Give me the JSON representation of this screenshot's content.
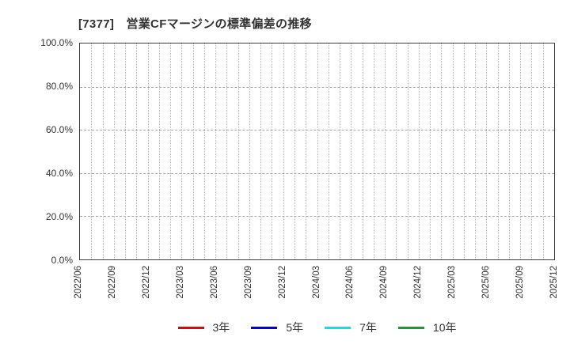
{
  "chart_data": {
    "type": "line",
    "title": "[7377]　営業CFマージンの標準偏差の推移",
    "x_labels": [
      "2022/06",
      "2022/09",
      "2022/12",
      "2023/03",
      "2023/06",
      "2023/09",
      "2023/12",
      "2024/03",
      "2024/06",
      "2024/09",
      "2024/12",
      "2025/03",
      "2025/06",
      "2025/09",
      "2025/12"
    ],
    "x_minor_gridlines_per_interval": 3,
    "y_ticks": [
      {
        "value": 0,
        "label": "0.0%"
      },
      {
        "value": 20,
        "label": "20.0%"
      },
      {
        "value": 40,
        "label": "40.0%"
      },
      {
        "value": 60,
        "label": "60.0%"
      },
      {
        "value": 80,
        "label": "80.0%"
      },
      {
        "value": 100,
        "label": "100.0%"
      }
    ],
    "ylim": [
      0,
      100
    ],
    "grid": true,
    "legend_position": "bottom",
    "series": [
      {
        "name": "3年",
        "color": "#ee0000",
        "values": []
      },
      {
        "name": "5年",
        "color": "#0000ee",
        "values": []
      },
      {
        "name": "7年",
        "color": "#00e5ee",
        "values": []
      },
      {
        "name": "10年",
        "color": "#14a02e",
        "values": []
      }
    ]
  }
}
